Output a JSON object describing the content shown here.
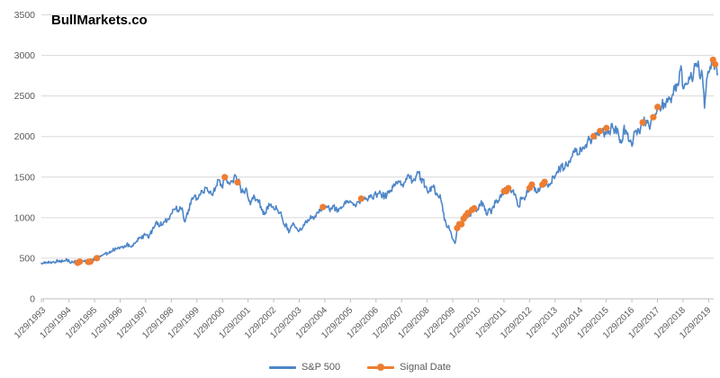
{
  "page": {
    "title": "BullMarkets.co"
  },
  "legend": {
    "sp500_label": "S&P 500",
    "signal_label": "Signal Date"
  },
  "chart_data": {
    "type": "line",
    "title": "BullMarkets.co",
    "xlabel": "",
    "ylabel": "",
    "ylim": [
      0,
      3500
    ],
    "y_ticks": [
      0,
      500,
      1000,
      1500,
      2000,
      2500,
      3000,
      3500
    ],
    "grid": "horizontal",
    "legend_position": "bottom",
    "x_tick_labels": [
      "1/29/1993",
      "1/29/1994",
      "1/29/1995",
      "1/29/1996",
      "1/29/1997",
      "1/29/1998",
      "1/29/1999",
      "1/29/2000",
      "1/29/2001",
      "1/29/2002",
      "1/29/2003",
      "1/29/2004",
      "1/29/2005",
      "1/29/2006",
      "1/29/2007",
      "1/29/2008",
      "1/29/2009",
      "1/29/2010",
      "1/29/2011",
      "1/29/2012",
      "1/29/2013",
      "1/29/2014",
      "1/29/2015",
      "1/29/2016",
      "1/29/2017",
      "1/29/2018",
      "1/29/2019"
    ],
    "series": [
      {
        "name": "S&P 500",
        "color": "#4E86C8",
        "frequency": "monthly",
        "start": "1/1993",
        "end": "6/2019",
        "values": [
          438,
          441,
          452,
          440,
          450,
          451,
          448,
          464,
          459,
          468,
          462,
          466,
          482,
          467,
          446,
          451,
          457,
          444,
          458,
          475,
          463,
          472,
          454,
          459,
          470,
          487,
          501,
          515,
          533,
          545,
          562,
          562,
          584,
          582,
          605,
          616,
          636,
          640,
          646,
          654,
          669,
          671,
          640,
          652,
          687,
          705,
          757,
          741,
          786,
          791,
          757,
          801,
          848,
          885,
          954,
          899,
          947,
          915,
          955,
          970,
          980,
          1049,
          1102,
          1112,
          1091,
          1134,
          1121,
          957,
          1017,
          1099,
          1164,
          1229,
          1280,
          1238,
          1286,
          1335,
          1302,
          1373,
          1329,
          1320,
          1283,
          1363,
          1389,
          1469,
          1394,
          1366,
          1499,
          1452,
          1421,
          1455,
          1431,
          1518,
          1436,
          1429,
          1315,
          1320,
          1366,
          1240,
          1160,
          1249,
          1256,
          1224,
          1211,
          1134,
          1041,
          1060,
          1139,
          1148,
          1130,
          1107,
          1147,
          1077,
          1067,
          990,
          911,
          916,
          815,
          886,
          936,
          880,
          856,
          841,
          848,
          917,
          964,
          975,
          990,
          1008,
          996,
          1051,
          1058,
          1112,
          1131,
          1145,
          1126,
          1107,
          1121,
          1141,
          1102,
          1104,
          1115,
          1130,
          1174,
          1212,
          1181,
          1204,
          1181,
          1157,
          1192,
          1191,
          1234,
          1220,
          1229,
          1207,
          1249,
          1248,
          1280,
          1281,
          1295,
          1311,
          1270,
          1270,
          1277,
          1304,
          1336,
          1378,
          1401,
          1418,
          1438,
          1407,
          1421,
          1482,
          1531,
          1503,
          1455,
          1474,
          1527,
          1549,
          1481,
          1468,
          1379,
          1331,
          1323,
          1386,
          1400,
          1280,
          1267,
          1283,
          1166,
          969,
          896,
          903,
          826,
          735,
          683,
          873,
          919,
          919,
          987,
          1021,
          1057,
          1036,
          1096,
          1115,
          1074,
          1104,
          1169,
          1187,
          1089,
          1031,
          1102,
          1049,
          1141,
          1183,
          1181,
          1258,
          1286,
          1327,
          1326,
          1364,
          1345,
          1321,
          1292,
          1219,
          1131,
          1253,
          1247,
          1258,
          1312,
          1366,
          1408,
          1398,
          1310,
          1362,
          1379,
          1407,
          1441,
          1412,
          1416,
          1426,
          1498,
          1515,
          1569,
          1598,
          1631,
          1606,
          1686,
          1633,
          1682,
          1757,
          1806,
          1848,
          1783,
          1859,
          1872,
          1884,
          1924,
          1960,
          1931,
          2003,
          1972,
          2018,
          2068,
          2059,
          1995,
          2105,
          2068,
          2086,
          2107,
          2063,
          2104,
          1972,
          1920,
          2079,
          2080,
          2044,
          1940,
          1880,
          2060,
          2065,
          2097,
          2099,
          2174,
          2171,
          2168,
          2126,
          2199,
          2239,
          2279,
          2364,
          2363,
          2384,
          2412,
          2423,
          2470,
          2472,
          2519,
          2575,
          2648,
          2674,
          2872,
          2588,
          2641,
          2648,
          2705,
          2718,
          2816,
          2902,
          2930,
          2712,
          2760,
          2351,
          2704,
          2785,
          2834,
          2946,
          2890,
          2760
        ]
      },
      {
        "name": "Signal Date",
        "color": "#ED7D31",
        "marker": "circle",
        "points": [
          {
            "index": 17,
            "value": 444
          },
          {
            "index": 18,
            "value": 458
          },
          {
            "index": 22,
            "value": 454
          },
          {
            "index": 23,
            "value": 459
          },
          {
            "index": 26,
            "value": 501
          },
          {
            "index": 86,
            "value": 1499
          },
          {
            "index": 92,
            "value": 1436
          },
          {
            "index": 132,
            "value": 1131
          },
          {
            "index": 150,
            "value": 1234
          },
          {
            "index": 195,
            "value": 873
          },
          {
            "index": 196,
            "value": 919
          },
          {
            "index": 197,
            "value": 919
          },
          {
            "index": 198,
            "value": 987
          },
          {
            "index": 199,
            "value": 1021
          },
          {
            "index": 200,
            "value": 1057
          },
          {
            "index": 202,
            "value": 1096
          },
          {
            "index": 203,
            "value": 1115
          },
          {
            "index": 217,
            "value": 1327
          },
          {
            "index": 218,
            "value": 1326
          },
          {
            "index": 219,
            "value": 1364
          },
          {
            "index": 229,
            "value": 1366
          },
          {
            "index": 230,
            "value": 1408
          },
          {
            "index": 235,
            "value": 1407
          },
          {
            "index": 236,
            "value": 1441
          },
          {
            "index": 259,
            "value": 2003
          },
          {
            "index": 262,
            "value": 2068
          },
          {
            "index": 265,
            "value": 2105
          },
          {
            "index": 282,
            "value": 2174
          },
          {
            "index": 287,
            "value": 2239
          },
          {
            "index": 289,
            "value": 2364
          },
          {
            "index": 315,
            "value": 2946
          },
          {
            "index": 316,
            "value": 2890
          }
        ]
      }
    ],
    "colors": {
      "line_blue": "#4E86C8",
      "signal_orange": "#ED7D31",
      "gridline": "#D9D9D9",
      "axis_line": "#BFBFBF",
      "tick_text": "#595959",
      "title_text": "#000000",
      "background": "#FFFFFF"
    }
  }
}
